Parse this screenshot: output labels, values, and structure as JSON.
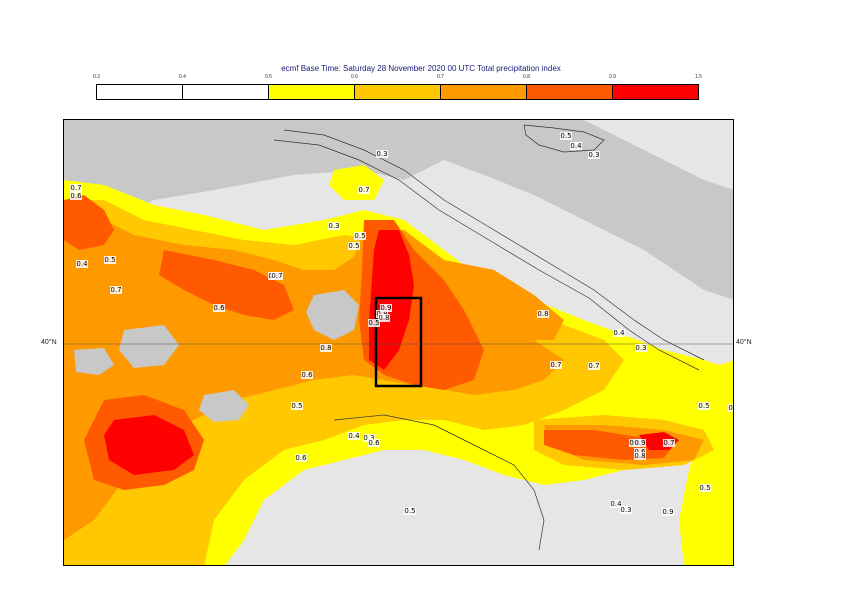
{
  "header": {
    "title": "ecmf  Base Time: Saturday 28 November 2020 00 UTC Total precipitation index"
  },
  "legend": {
    "ticks": [
      "0.3",
      "0.4",
      "0.5",
      "0.6",
      "0.7",
      "0.8",
      "0.9",
      "1.5"
    ],
    "colors": [
      "#ffffff",
      "#ffffff",
      "#ffff00",
      "#ffc800",
      "#ff9900",
      "#ff5a00",
      "#ff0000"
    ]
  },
  "map": {
    "lat_label_left": "40°N",
    "lat_label_right": "40°N",
    "contour_labels": [
      "0.5",
      "0.4",
      "0.3",
      "0.3",
      "0.7",
      "0.3",
      "0.5",
      "0.5",
      "0.7",
      "0.6",
      "0.4",
      "0.5",
      "0.8",
      "0.7",
      "0.6",
      "0.7",
      "0.8",
      "0.9",
      "0.8",
      "0.5",
      "0.8",
      "0.8",
      "0.6",
      "0.4",
      "0.3",
      "0.7",
      "0.7",
      "0.8",
      "0.6",
      "0.5",
      "0.4",
      "0.3",
      "0.6",
      "0.6",
      "0.9",
      "0.8",
      "0.7",
      "0.5",
      "0.5",
      "0.4",
      "0.3",
      "0.9",
      "0.5",
      "0.5"
    ],
    "colors": {
      "sea": "#c8c8c8",
      "land": "#e6e6e6",
      "lvl05": "#ffff00",
      "lvl06": "#ffc800",
      "lvl07": "#ff9900",
      "lvl08": "#ff5a00",
      "lvl09": "#ff0000"
    }
  }
}
